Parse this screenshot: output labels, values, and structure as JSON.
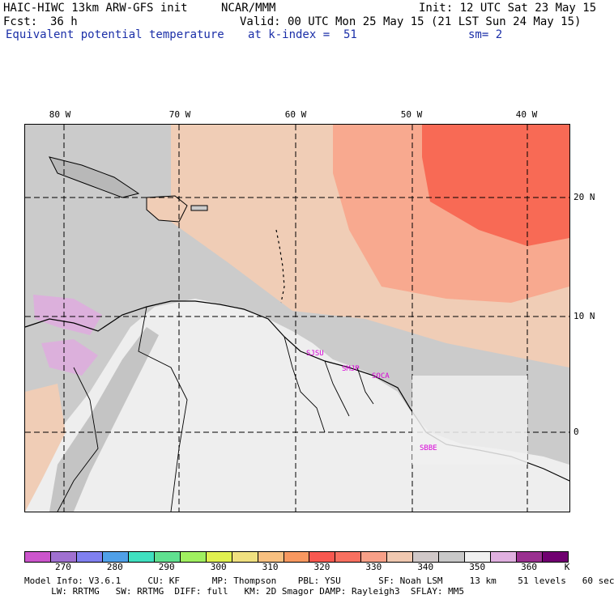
{
  "header": {
    "model_title": "HAIC-HIWC 13km ARW-GFS init",
    "center": "NCAR/MMM",
    "init": "Init: 12 UTC Sat 23 May 15",
    "fcst_label": "Fcst:",
    "fcst_value": "36 h",
    "valid": "Valid: 00 UTC Mon 25 May 15 (21 LST Sun 24 May 15)",
    "field": "Equivalent potential temperature",
    "level": "at k-index =  51",
    "smooth": "sm= 2"
  },
  "map": {
    "lon_labels": [
      "80 W",
      "70 W",
      "60 W",
      "50 W",
      "40 W"
    ],
    "lat_labels": [
      "20 N",
      "10 N",
      "0"
    ],
    "sites": [
      "SJSU",
      "SMJP",
      "SOCA",
      "SBBE"
    ]
  },
  "colorbar": {
    "unit": "K",
    "tick_labels": [
      "270",
      "280",
      "290",
      "300",
      "310",
      "320",
      "330",
      "340",
      "350",
      "360"
    ],
    "colors": [
      "#cc55cc",
      "#a070d0",
      "#8080f0",
      "#50a0e8",
      "#40e0c0",
      "#60e090",
      "#a0f060",
      "#e0f050",
      "#f0e080",
      "#f8c080",
      "#f89860",
      "#f85850",
      "#f87060",
      "#f8a088",
      "#f0c8b0",
      "#d0c8c8",
      "#c8c8c8",
      "#f0f0f0",
      "#e0b0e0",
      "#9a3090",
      "#700070"
    ]
  },
  "footer": {
    "line1": "Model Info: V3.6.1     CU: KF      MP: Thompson    PBL: YSU       SF: Noah LSM     13 km    51 levels   60 sec",
    "line2": "     LW: RRTMG   SW: RRTMG  DIFF: full   KM: 2D Smagor DAMP: Rayleigh3  SFLAY: MM5"
  }
}
